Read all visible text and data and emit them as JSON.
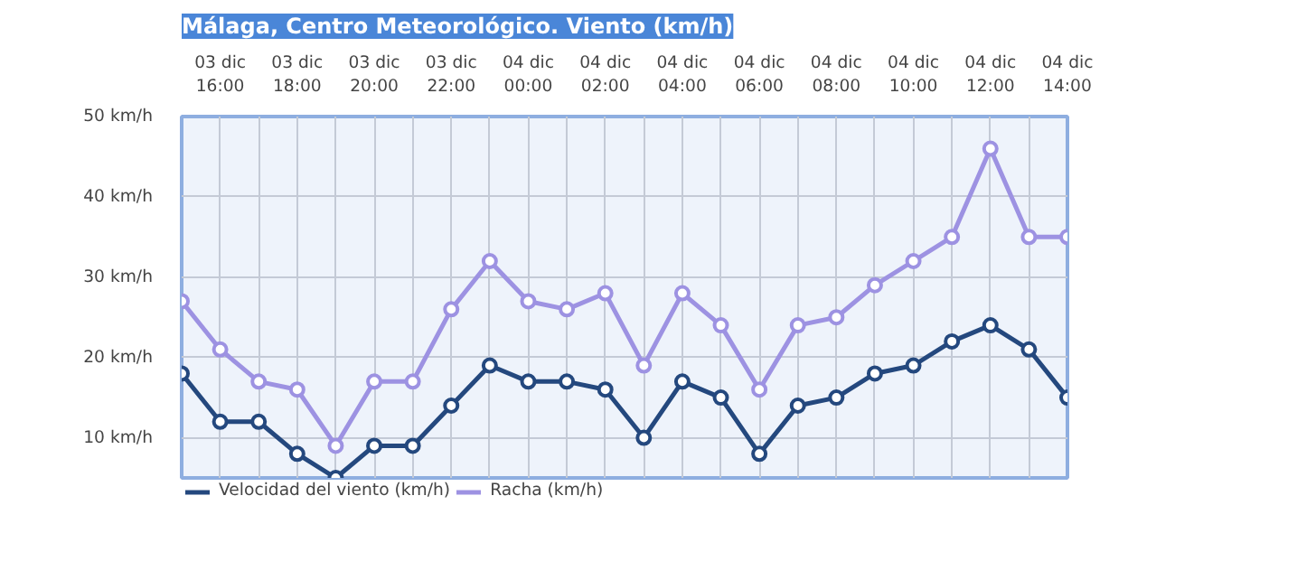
{
  "chart_data": {
    "type": "line",
    "title": "Málaga, Centro Meteorológico. Viento (km/h)",
    "categories": [
      null,
      "03 dic\n16:00",
      null,
      "03 dic\n18:00",
      null,
      "03 dic\n20:00",
      null,
      "03 dic\n22:00",
      null,
      "04 dic\n00:00",
      null,
      "04 dic\n02:00",
      null,
      "04 dic\n04:00",
      null,
      "04 dic\n06:00",
      null,
      "04 dic\n08:00",
      null,
      "04 dic\n10:00",
      null,
      "04 dic\n12:00",
      null,
      "04 dic\n14:00"
    ],
    "series": [
      {
        "name": "Velocidad del viento (km/h)",
        "color": "#24487e",
        "values": [
          18,
          12,
          12,
          8,
          5,
          9,
          9,
          14,
          19,
          17,
          17,
          16,
          10,
          17,
          15,
          8,
          14,
          15,
          18,
          19,
          22,
          24,
          21,
          15
        ]
      },
      {
        "name": "Racha (km/h)",
        "color": "#9d92e2",
        "values": [
          27,
          21,
          17,
          16,
          9,
          17,
          17,
          26,
          32,
          27,
          26,
          28,
          19,
          28,
          24,
          16,
          24,
          25,
          29,
          32,
          35,
          46,
          35,
          35
        ]
      }
    ],
    "ylim": [
      5,
      50
    ],
    "yticks": [
      {
        "value": 10,
        "label": "10 km/h"
      },
      {
        "value": 20,
        "label": "20 km/h"
      },
      {
        "value": 30,
        "label": "30 km/h"
      },
      {
        "value": 40,
        "label": "40 km/h"
      },
      {
        "value": 50,
        "label": "50 km/h"
      }
    ],
    "grid": true,
    "legend": "bottom left",
    "marker": "circle",
    "line_style": "solid"
  }
}
